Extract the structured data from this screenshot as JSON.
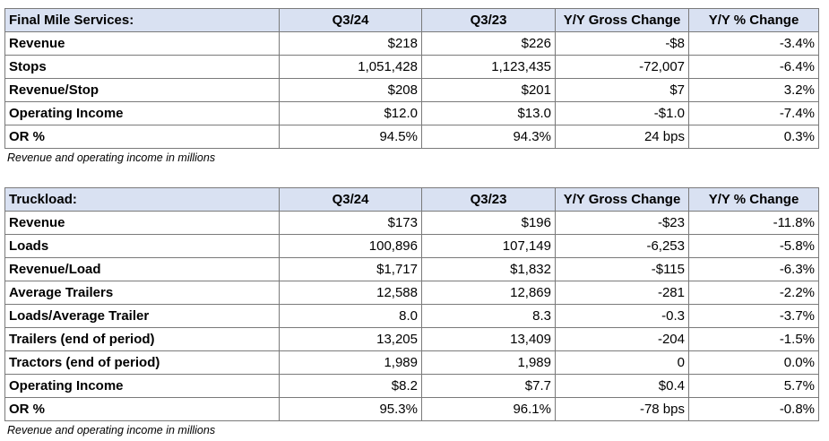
{
  "final_mile": {
    "headers": [
      "Final Mile Services:",
      "Q3/24",
      "Q3/23",
      "Y/Y Gross Change",
      "Y/Y % Change"
    ],
    "rows": [
      [
        "Revenue",
        "$218",
        "$226",
        "-$8",
        "-3.4%"
      ],
      [
        "Stops",
        "1,051,428",
        "1,123,435",
        "-72,007",
        "-6.4%"
      ],
      [
        "Revenue/Stop",
        "$208",
        "$201",
        "$7",
        "3.2%"
      ],
      [
        "Operating Income",
        "$12.0",
        "$13.0",
        "-$1.0",
        "-7.4%"
      ],
      [
        "OR %",
        "94.5%",
        "94.3%",
        "24 bps",
        "0.3%"
      ]
    ],
    "note": "Revenue and operating income in millions"
  },
  "truckload": {
    "headers": [
      "Truckload:",
      "Q3/24",
      "Q3/23",
      "Y/Y Gross Change",
      "Y/Y % Change"
    ],
    "rows": [
      [
        "Revenue",
        "$173",
        "$196",
        "-$23",
        "-11.8%"
      ],
      [
        "Loads",
        "100,896",
        "107,149",
        "-6,253",
        "-5.8%"
      ],
      [
        "Revenue/Load",
        "$1,717",
        "$1,832",
        "-$115",
        "-6.3%"
      ],
      [
        "Average Trailers",
        "12,588",
        "12,869",
        "-281",
        "-2.2%"
      ],
      [
        "Loads/Average Trailer",
        "8.0",
        "8.3",
        "-0.3",
        "-3.7%"
      ],
      [
        "Trailers (end of period)",
        "13,205",
        "13,409",
        "-204",
        "-1.5%"
      ],
      [
        "Tractors (end of period)",
        "1,989",
        "1,989",
        "0",
        "0.0%"
      ],
      [
        "Operating Income",
        "$8.2",
        "$7.7",
        "$0.4",
        "5.7%"
      ],
      [
        "OR %",
        "95.3%",
        "96.1%",
        "-78 bps",
        "-0.8%"
      ]
    ],
    "note": "Revenue and operating income in millions"
  }
}
